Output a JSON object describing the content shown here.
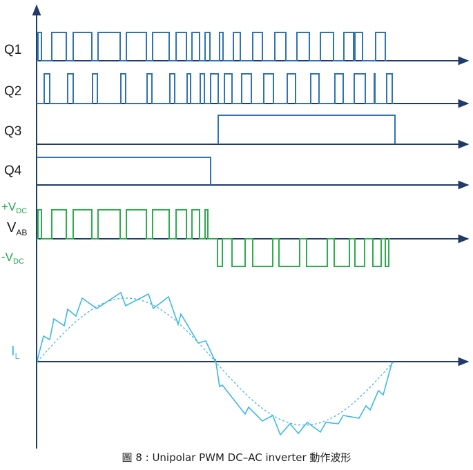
{
  "labels": {
    "q1": "Q1",
    "q2": "Q2",
    "q3": "Q3",
    "q4": "Q4",
    "vplus_main": "+V",
    "vplus_sub": "DC",
    "vab_main": "V",
    "vab_sub": "AB",
    "vminus_main": "-V",
    "vminus_sub": "DC",
    "il_main": "I",
    "il_sub": "L"
  },
  "caption": "圖  8 : Unipolar PWM DC–AC inverter  動作波形",
  "colors": {
    "axis": "#1f3a6b",
    "switch_trace": "#2e74b5",
    "vab_trace": "#2aae4a",
    "vab_label_green": "#1aa84a",
    "current": "#3cb8e8",
    "text": "#1a1a1a"
  },
  "icons": {
    "axis_arrow": "arrowhead"
  }
}
